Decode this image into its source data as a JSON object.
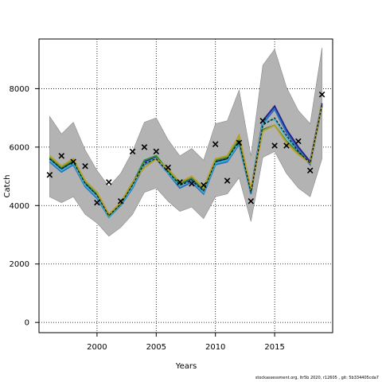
{
  "chart_data": {
    "type": "line",
    "xlabel": "Years",
    "ylabel": "Catch",
    "xlim": [
      1995.1,
      2019.9
    ],
    "ylim": [
      -350,
      9700
    ],
    "x_ticks": [
      2000,
      2005,
      2010,
      2015
    ],
    "y_ticks": [
      0,
      2000,
      4000,
      6000,
      8000
    ],
    "grid": "dotted",
    "years": [
      1996,
      1997,
      1998,
      1999,
      2000,
      2001,
      2002,
      2003,
      2004,
      2005,
      2006,
      2007,
      2008,
      2009,
      2010,
      2011,
      2012,
      2013,
      2014,
      2015,
      2016,
      2017,
      2018,
      2019
    ],
    "band": {
      "upper": [
        7050,
        6450,
        6850,
        5900,
        5200,
        4650,
        5100,
        5850,
        6850,
        7000,
        6250,
        5700,
        5950,
        5550,
        6800,
        6900,
        7950,
        5700,
        8800,
        9350,
        8050,
        7250,
        6800,
        9400
      ],
      "lower": [
        4300,
        4100,
        4300,
        3700,
        3400,
        2950,
        3250,
        3700,
        4450,
        4600,
        4150,
        3800,
        3950,
        3550,
        4300,
        4400,
        4950,
        3450,
        5650,
        5850,
        5100,
        4600,
        4300,
        5600
      ]
    },
    "series": [
      {
        "color": "#1f1f8f",
        "values": [
          5600,
          5250,
          5500,
          4750,
          4350,
          3650,
          4050,
          4700,
          5500,
          5650,
          5150,
          4750,
          4900,
          4500,
          5500,
          5600,
          6200,
          4500,
          6900,
          7400,
          6600,
          6000,
          5500,
          7500
        ]
      },
      {
        "color": "#2b6fbf",
        "values": [
          5500,
          5150,
          5400,
          4650,
          4250,
          3600,
          4000,
          4600,
          5400,
          5600,
          5100,
          4600,
          4800,
          4400,
          5400,
          5500,
          6100,
          4400,
          6800,
          7300,
          6500,
          5900,
          5400,
          7400
        ]
      },
      {
        "color": "#3fb4c8",
        "values": [
          5550,
          5200,
          5450,
          4700,
          4300,
          3620,
          4020,
          4650,
          5450,
          5620,
          5120,
          4680,
          4850,
          4450,
          5450,
          5550,
          6150,
          4450,
          6850,
          6950,
          6350,
          5800,
          5450,
          7450
        ]
      },
      {
        "color": "#2e8b3e",
        "values": [
          5650,
          5300,
          5550,
          4800,
          4400,
          3660,
          4060,
          4750,
          5550,
          5700,
          5200,
          4750,
          4950,
          4550,
          5550,
          5650,
          6250,
          4500,
          6600,
          6750,
          6200,
          5800,
          5450,
          7450
        ]
      },
      {
        "color": "#b5a028",
        "values": [
          5700,
          5350,
          5600,
          4850,
          4450,
          3700,
          4100,
          4800,
          5300,
          5600,
          5250,
          4800,
          5000,
          4600,
          5600,
          5700,
          6400,
          4550,
          6550,
          6750,
          6150,
          5750,
          5450,
          7450
        ]
      },
      {
        "color": "#111111",
        "style": "dashed",
        "values": [
          5600,
          5250,
          5500,
          4750,
          4350,
          3650,
          4050,
          4700,
          5450,
          5600,
          5150,
          4700,
          4850,
          4500,
          5500,
          5600,
          6200,
          4450,
          6750,
          7000,
          6400,
          5850,
          5450,
          7450
        ]
      }
    ],
    "observed": {
      "years": [
        1996,
        1997,
        1998,
        1999,
        2000,
        2001,
        2002,
        2003,
        2004,
        2005,
        2006,
        2007,
        2008,
        2009,
        2010,
        2011,
        2012,
        2013,
        2014,
        2015,
        2016,
        2017,
        2018,
        2019
      ],
      "values": [
        5050,
        5700,
        5500,
        5350,
        4100,
        4800,
        4150,
        5850,
        6000,
        5850,
        5300,
        4800,
        4750,
        4700,
        6100,
        4850,
        6150,
        4150,
        6900,
        6050,
        6050,
        6200,
        5200,
        7800
      ]
    }
  },
  "footer": {
    "note": "stockassessment.org, ltr5b 2020, r12605 , git: 5b334405cda7"
  }
}
